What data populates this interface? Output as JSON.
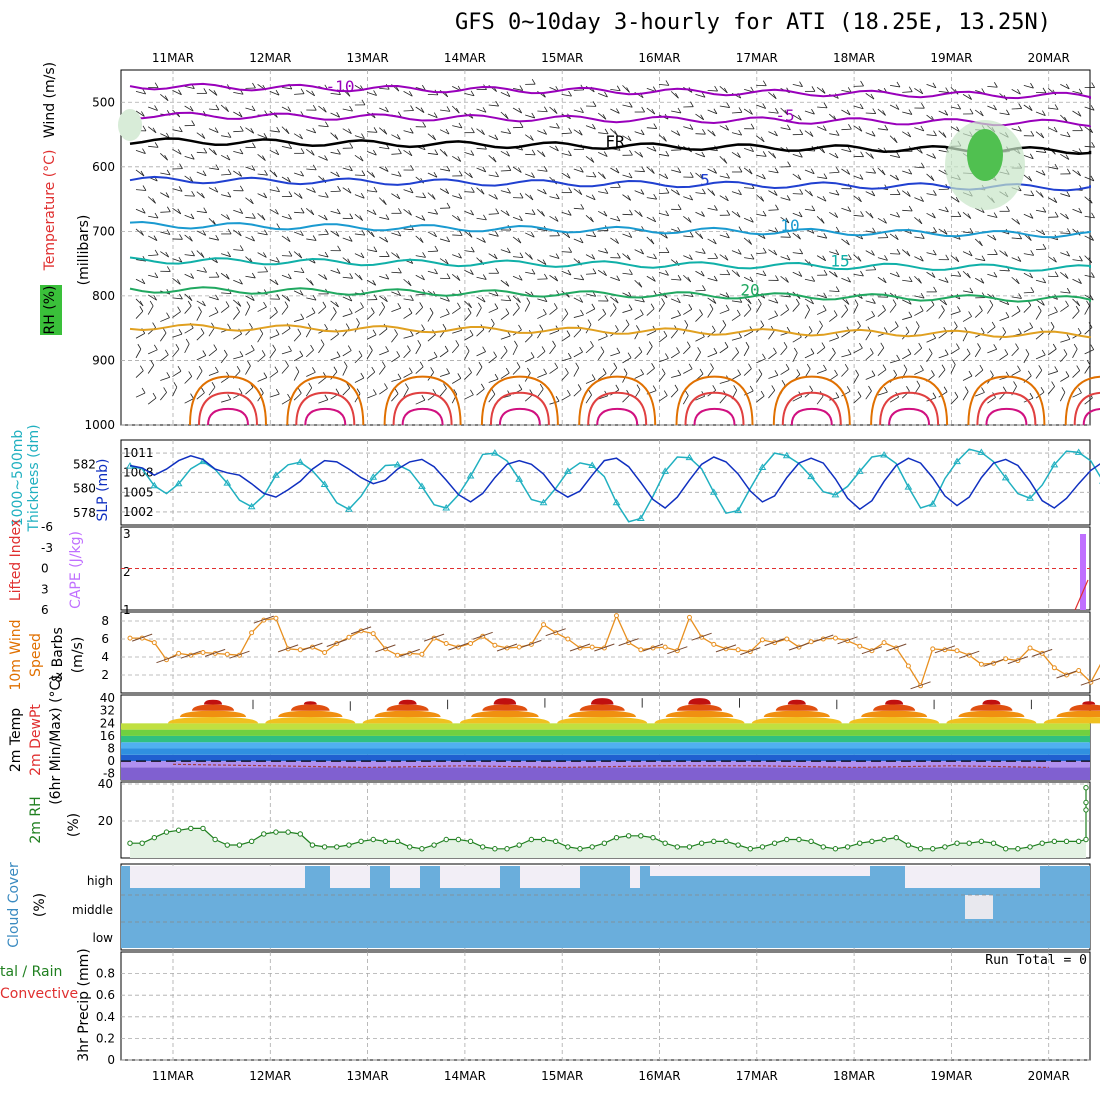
{
  "title": "GFS 0~10day 3-hourly for ATI (18.25E, 13.25N)",
  "dates": [
    "11MAR",
    "12MAR",
    "13MAR",
    "14MAR",
    "15MAR",
    "16MAR",
    "17MAR",
    "18MAR",
    "19MAR",
    "20MAR"
  ],
  "panel_labels": {
    "upper_wind": "Wind",
    "upper_wind_unit": "(m/s)",
    "upper_temp": "Temperature",
    "upper_temp_unit": "(°C)",
    "upper_rh": "RH (%)",
    "upper_pres": "(millibars)",
    "thick": "1000~500mb",
    "thick2": "Thickness (dm)",
    "slp": "SLP (mb)",
    "li": "Lifted Index",
    "cape": "CAPE (J/kg)",
    "wind10_a": "10m Wind",
    "wind10_b": "Speed",
    "wind10_c": "& Barbs",
    "wind10_unit": "(m/s)",
    "temp_a": "2m Temp",
    "temp_b": "2m DewPt",
    "temp_c": "(6hr Min/Max) (°C)",
    "rh2m": "2m RH",
    "rh2m_unit": "(%)",
    "cloud": "Cloud Cover",
    "cloud_unit": "(%)",
    "cloud_high": "high",
    "cloud_middle": "middle",
    "cloud_low": "low",
    "precip_a": "tal / Rain",
    "precip_b": "Convective",
    "precip_c": "3hr Precip (mm)",
    "run_total": "Run Total = 0"
  },
  "chart_data": [
    {
      "type": "contour",
      "panel": "upper-air",
      "ylabel": "(millibars)",
      "yticks": [
        500,
        600,
        700,
        800,
        900,
        1000
      ],
      "temperature_isotherm_labels": [
        "-10",
        "-5",
        "FR",
        "5",
        "10",
        "15",
        "20"
      ],
      "temperature_colors": {
        "-10": "#9900bb",
        "-5": "#9900bb",
        "FR": "#000000",
        "5": "#2040d0",
        "10": "#1a9ad0",
        "15": "#10b0a8",
        "20": "#20a860"
      },
      "rh_label_values": [
        "10"
      ]
    },
    {
      "type": "line",
      "panel": "thickness-slp",
      "ylabel_left": "1000~500mb Thickness (dm)",
      "ylabel_right": "SLP (mb)",
      "yticks_left": [
        578,
        580,
        582
      ],
      "yticks_right": [
        1002,
        1005,
        1008,
        1011
      ],
      "series": [
        {
          "name": "SLP (mb)",
          "color": "#20b0c0",
          "values": [
            1009,
            1008.6,
            1006,
            1004.8,
            1006.3,
            1008.6,
            1009.7,
            1008.5,
            1006.4,
            1003.8,
            1002.8,
            1004.5,
            1007.6,
            1009.2,
            1009.6,
            1008.3,
            1006.2,
            1003.4,
            1002.4,
            1004.4,
            1007.3,
            1009.1,
            1009.2,
            1008.3,
            1005.9,
            1003.1,
            1002.6,
            1004.6,
            1007.5,
            1010.8,
            1011,
            1009.8,
            1007,
            1003.9,
            1003.4,
            1005.6,
            1008.2,
            1009.5,
            1009.1,
            1007.4,
            1003.4,
            1000.5,
            1001,
            1004.4,
            1008.2,
            1010.4,
            1010.3,
            1008.6,
            1005,
            1001.8,
            1002.2,
            1005.6,
            1008.8,
            1011,
            1010.6,
            1009.4,
            1007.4,
            1005.1,
            1004.6,
            1005.9,
            1008.2,
            1010.4,
            1010.7,
            1009.4,
            1005.8,
            1002.6,
            1003.2,
            1007.1,
            1009.7,
            1011.6,
            1011.1,
            1009.7,
            1007.2,
            1004.8,
            1004.1,
            1006.1,
            1009.2,
            1011.3,
            1011.1,
            1009.8,
            1006.7
          ]
        },
        {
          "name": "Thickness (dm)",
          "color": "#1030c0",
          "values": [
            581.9,
            581.7,
            581.1,
            581.6,
            582.3,
            582.7,
            582.4,
            581.6,
            581.3,
            581.1,
            580.4,
            579.6,
            579.3,
            579.9,
            580.6,
            581.6,
            582.3,
            582.2,
            581.6,
            580.9,
            580.4,
            580.7,
            581.6,
            582.2,
            582.4,
            581.8,
            580.7,
            579.5,
            578.9,
            579.6,
            580.9,
            582.0,
            582.3,
            582.0,
            581.2,
            579.9,
            579.3,
            579.8,
            581.1,
            582.3,
            582.5,
            581.8,
            580.5,
            579.1,
            578.4,
            579.3,
            580.7,
            582.0,
            582.6,
            582.2,
            581.2,
            579.8,
            578.9,
            579.4,
            580.9,
            582.1,
            582.5,
            582.1,
            580.8,
            579.2,
            578.3,
            579.0,
            580.6,
            581.9,
            582.5,
            582.1,
            580.9,
            579.4,
            578.6,
            579.3,
            580.9,
            582.1,
            582.4,
            581.9,
            580.6,
            579.0,
            578.4,
            579.2,
            580.4,
            581.5,
            582.2
          ]
        }
      ]
    },
    {
      "type": "line",
      "panel": "stability",
      "ylabel_left": "Lifted Index",
      "ylabel_right": "CAPE (J/kg)",
      "yticks_left": [
        6,
        3,
        0,
        -3,
        -6
      ],
      "yticks_right": [
        1,
        2,
        3
      ],
      "li_zero_line": 0,
      "cape_final": 3
    },
    {
      "type": "line",
      "panel": "wind10m",
      "ylabel": "10m Wind Speed & Barbs (m/s)",
      "yticks": [
        2,
        4,
        6,
        8
      ],
      "series": [
        {
          "name": "Speed",
          "color": "#e89020",
          "values": [
            6.1,
            6.1,
            5.6,
            3.7,
            4.4,
            4.2,
            4.5,
            4.4,
            4.3,
            4.2,
            6.7,
            8.1,
            8.3,
            4.9,
            4.8,
            5.1,
            4.5,
            5.5,
            6.2,
            6.9,
            6.6,
            4.9,
            4.2,
            4.4,
            4.3,
            6.1,
            5.5,
            5.1,
            5.5,
            6.3,
            5.3,
            5.0,
            5.1,
            5.4,
            7.6,
            6.7,
            6.0,
            5.0,
            5.1,
            5.0,
            8.6,
            5.6,
            4.8,
            5.0,
            5.1,
            4.7,
            8.4,
            6.2,
            5.4,
            4.9,
            4.8,
            4.6,
            5.9,
            5.6,
            6.0,
            5.1,
            5.7,
            6.0,
            6.1,
            5.8,
            5.2,
            4.7,
            5.6,
            5.0,
            3.0,
            0.8,
            4.9,
            4.8,
            4.7,
            4.2,
            3.2,
            3.3,
            3.8,
            3.6,
            5.0,
            4.4,
            2.8,
            2.0,
            2.5,
            1.2,
            3.7,
            4.5
          ]
        }
      ]
    },
    {
      "type": "line",
      "panel": "temp2m",
      "ylabel": "2m Temp 2m DewPt (6hr Min/Max) (°C)",
      "yticks": [
        40,
        32,
        24,
        16,
        8,
        0,
        -8
      ],
      "series": [
        {
          "name": "2m Temp",
          "color": "#000000",
          "days_max": [
            39,
            38,
            39,
            40,
            40,
            40,
            39,
            39,
            39,
            38
          ],
          "days_min": [
            25,
            24,
            24,
            24,
            25,
            25,
            24,
            25,
            26,
            26
          ]
        },
        {
          "name": "2m DewPt",
          "color": "#a04040",
          "values_approx": [
            -2,
            -3,
            -4,
            -3,
            -4,
            -3,
            -3,
            -4,
            -3,
            -4
          ]
        }
      ]
    },
    {
      "type": "area",
      "panel": "rh2m",
      "ylabel": "2m RH (%)",
      "yticks": [
        20,
        40
      ],
      "series": [
        {
          "name": "2m RH",
          "color": "#208020",
          "values": [
            8,
            8,
            11,
            14,
            15,
            16,
            16,
            10,
            7,
            7,
            9,
            13,
            14,
            14,
            13,
            7,
            6,
            6,
            7,
            9,
            10,
            9,
            9,
            6,
            5,
            7,
            10,
            10,
            9,
            6,
            5,
            5,
            7,
            10,
            10,
            9,
            6,
            5,
            6,
            8,
            11,
            12,
            12,
            11,
            8,
            6,
            6,
            8,
            9,
            9,
            7,
            5,
            6,
            8,
            10,
            10,
            9,
            6,
            5,
            6,
            8,
            9,
            10,
            11,
            7,
            5,
            5,
            6,
            8,
            8,
            9,
            8,
            5,
            5,
            6,
            8,
            9,
            9,
            9,
            10,
            26,
            30,
            38
          ]
        }
      ]
    },
    {
      "type": "area",
      "panel": "cloud",
      "ylabel": "Cloud Cover (%)",
      "levels": [
        "high",
        "middle",
        "low"
      ]
    },
    {
      "type": "bar",
      "panel": "precip",
      "ylabel": "3hr Precip (mm)",
      "yticks": [
        0,
        0.2,
        0.4,
        0.6,
        0.8
      ],
      "values": [],
      "annotation": "Run Total = 0"
    }
  ]
}
